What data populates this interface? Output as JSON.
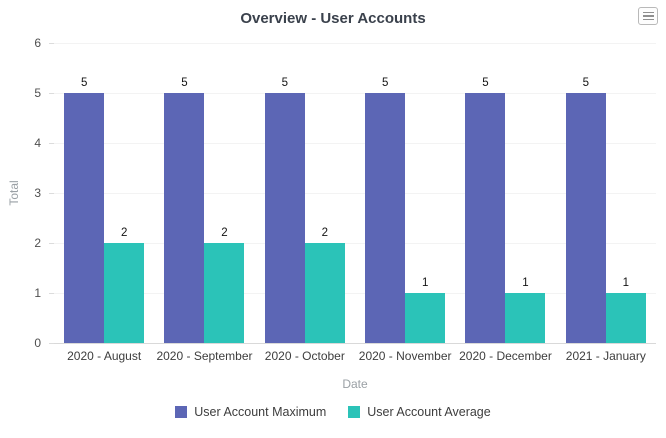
{
  "icons": {
    "chart_menu": "hamburger-menu-icon"
  },
  "chart_data": {
    "type": "bar",
    "title": "Overview - User Accounts",
    "xlabel": "Date",
    "ylabel": "Total",
    "ylim": [
      0,
      6
    ],
    "y_ticks": [
      0,
      1,
      2,
      3,
      4,
      5,
      6
    ],
    "grid": true,
    "data_labels": true,
    "legend_position": "bottom",
    "categories": [
      "2020 - August",
      "2020 - September",
      "2020 - October",
      "2020 - November",
      "2020 - December",
      "2021 - January"
    ],
    "series": [
      {
        "name": "User Account Maximum",
        "color": "#5C66B5",
        "values": [
          5,
          5,
          5,
          5,
          5,
          5
        ]
      },
      {
        "name": "User Account Average",
        "color": "#2BC3B8",
        "values": [
          2,
          2,
          2,
          1,
          1,
          1
        ]
      }
    ]
  }
}
